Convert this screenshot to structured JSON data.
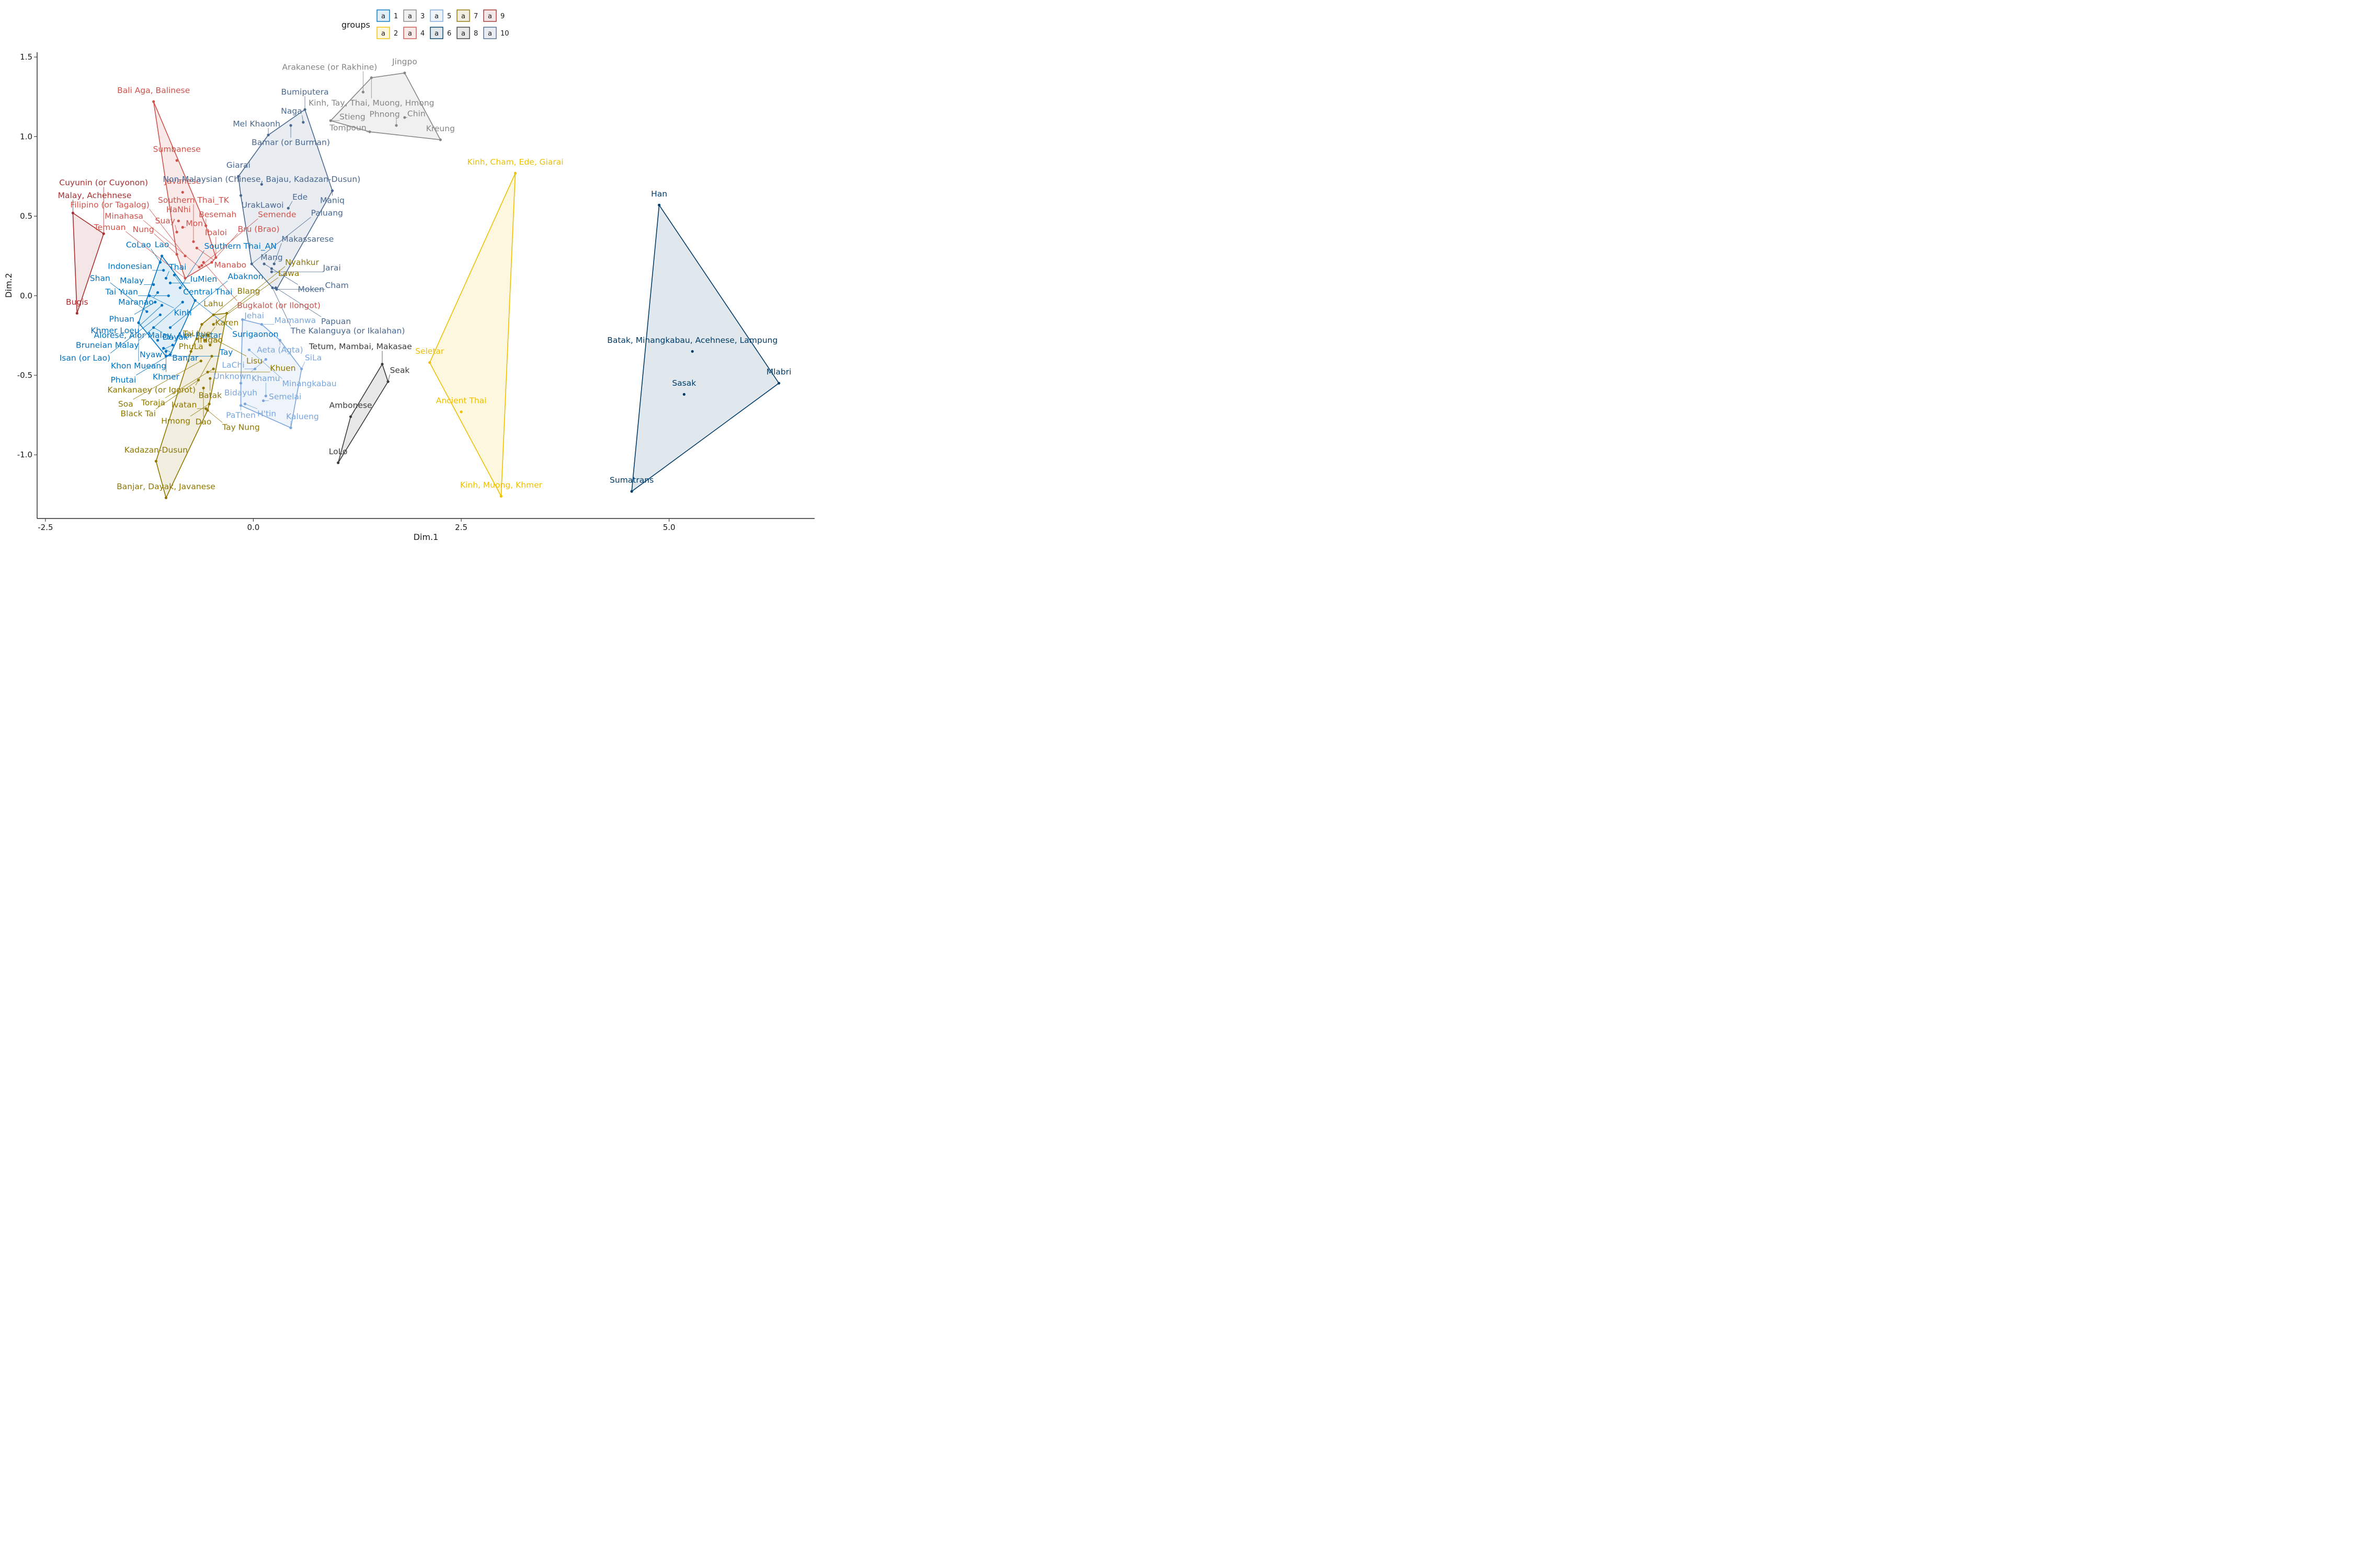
{
  "chart_data": {
    "type": "scatter",
    "xlabel": "Dim.1",
    "ylabel": "Dim.2",
    "xlim": [
      -2.6,
      6.75
    ],
    "ylim": [
      -1.4,
      1.53
    ],
    "xticks": [
      -2.5,
      0.0,
      2.5,
      5.0
    ],
    "xtick_labels": [
      "-2.5",
      "0.0",
      "2.5",
      "5.0"
    ],
    "yticks": [
      -1.0,
      -0.5,
      0.0,
      0.5,
      1.0,
      1.5
    ],
    "ytick_labels": [
      "-1.0",
      "-0.5",
      "0.0",
      "0.5",
      "1.0",
      "1.5"
    ],
    "grid": false,
    "legend": {
      "title": "groups",
      "placement": "top",
      "glyph": "a",
      "entries": [
        "1",
        "2",
        "3",
        "4",
        "5",
        "6",
        "7",
        "8",
        "9",
        "10"
      ]
    },
    "series": [
      {
        "name": "1",
        "color": "#0073C2",
        "fill": "#0073C2",
        "points": [
          {
            "label": "Lao",
            "x": -1.1,
            "y": 0.25
          },
          {
            "label": "CoLao",
            "x": -1.12,
            "y": 0.21
          },
          {
            "label": "Indonesian",
            "x": -1.08,
            "y": 0.16
          },
          {
            "label": "Central Thai",
            "x": -0.95,
            "y": 0.13
          },
          {
            "label": "Thai",
            "x": -1.05,
            "y": 0.11
          },
          {
            "label": "IuMien",
            "x": -1.0,
            "y": 0.08
          },
          {
            "label": "Southern Thai_AN",
            "x": -0.88,
            "y": 0.05
          },
          {
            "label": "Malay",
            "x": -1.2,
            "y": 0.07
          },
          {
            "label": "Maranao",
            "x": -1.15,
            "y": 0.02
          },
          {
            "label": "Tai Yuan",
            "x": -1.02,
            "y": 0.0
          },
          {
            "label": "Kinh",
            "x": -1.25,
            "y": 0.0
          },
          {
            "label": "Surigaonon",
            "x": -0.7,
            "y": -0.03
          },
          {
            "label": "Phuan",
            "x": -1.18,
            "y": -0.04
          },
          {
            "label": "Khmer Loeu",
            "x": -1.1,
            "y": -0.06
          },
          {
            "label": "Bruneian Malay",
            "x": -0.85,
            "y": -0.04
          },
          {
            "label": "Shan",
            "x": -1.28,
            "y": -0.1
          },
          {
            "label": "Isan (or Lao)",
            "x": -1.12,
            "y": -0.12
          },
          {
            "label": "Khon Mueang",
            "x": -1.38,
            "y": -0.17
          },
          {
            "label": "Dayak",
            "x": -1.2,
            "y": -0.2
          },
          {
            "label": "Abaknon",
            "x": -1.0,
            "y": -0.2
          },
          {
            "label": "Alorese, Alor Malay, Alor-Pantar",
            "x": -1.15,
            "y": -0.28
          },
          {
            "label": "Banjar",
            "x": -1.08,
            "y": -0.33
          },
          {
            "label": "Nyaw",
            "x": -0.97,
            "y": -0.31
          },
          {
            "label": "Khmer",
            "x": -1.05,
            "y": -0.35
          },
          {
            "label": "Phutai",
            "x": -1.0,
            "y": -0.37
          },
          {
            "label": "Tay",
            "x": -1.05,
            "y": -0.38
          }
        ]
      },
      {
        "name": "2",
        "color": "#EFC000",
        "fill": "#EFC000",
        "points": [
          {
            "label": "Kinh, Cham, Ede, Giarai",
            "x": 3.15,
            "y": 0.77
          },
          {
            "label": "Seletar",
            "x": 2.12,
            "y": -0.42
          },
          {
            "label": "Ancient Thai",
            "x": 2.5,
            "y": -0.73
          },
          {
            "label": "Kinh, Muong, Khmer",
            "x": 2.98,
            "y": -1.26
          }
        ]
      },
      {
        "name": "3",
        "color": "#868686",
        "fill": "#868686",
        "points": [
          {
            "label": "Jingpo",
            "x": 1.82,
            "y": 1.4
          },
          {
            "label": "Kinh, Tay, Thai, Muong, Hmong",
            "x": 1.42,
            "y": 1.37
          },
          {
            "label": "Arakanese (or Rakhine)",
            "x": 1.32,
            "y": 1.28
          },
          {
            "label": "Chin",
            "x": 1.82,
            "y": 1.12
          },
          {
            "label": "Stieng",
            "x": 0.93,
            "y": 1.1
          },
          {
            "label": "Phnong",
            "x": 1.72,
            "y": 1.07
          },
          {
            "label": "Tompoun",
            "x": 1.4,
            "y": 1.03
          },
          {
            "label": "Kreung",
            "x": 2.25,
            "y": 0.98
          }
        ]
      },
      {
        "name": "4",
        "color": "#CD534C",
        "fill": "#CD534C",
        "points": [
          {
            "label": "Bali Aga, Balinese",
            "x": -1.2,
            "y": 1.22
          },
          {
            "label": "Sumbanese",
            "x": -0.92,
            "y": 0.85
          },
          {
            "label": "Javanese",
            "x": -0.85,
            "y": 0.65
          },
          {
            "label": "HaNhi",
            "x": -0.9,
            "y": 0.47
          },
          {
            "label": "Besemah",
            "x": -0.57,
            "y": 0.44
          },
          {
            "label": "Mon",
            "x": -0.85,
            "y": 0.43
          },
          {
            "label": "Suay",
            "x": -0.92,
            "y": 0.4
          },
          {
            "label": "Southern Thai_TK",
            "x": -0.72,
            "y": 0.34
          },
          {
            "label": "Manabo",
            "x": -0.68,
            "y": 0.3
          },
          {
            "label": "Nung",
            "x": -0.92,
            "y": 0.26
          },
          {
            "label": "Filipino (or Tagalog)",
            "x": -0.82,
            "y": 0.25
          },
          {
            "label": "Ibaloi",
            "x": -0.45,
            "y": 0.24
          },
          {
            "label": "Bugkalot (or Ilongot)",
            "x": -0.6,
            "y": 0.21
          },
          {
            "label": "Bru (Brao)",
            "x": -0.5,
            "y": 0.21
          },
          {
            "label": "Semende",
            "x": -0.62,
            "y": 0.19
          },
          {
            "label": "Minahasa",
            "x": -0.65,
            "y": 0.18
          },
          {
            "label": "Temuan",
            "x": -0.82,
            "y": 0.11
          }
        ]
      },
      {
        "name": "5",
        "color": "#7AA6DC",
        "fill": "#7AA6DC",
        "points": [
          {
            "label": "Jehai",
            "x": -0.13,
            "y": -0.15
          },
          {
            "label": "Mamanwa",
            "x": 0.1,
            "y": -0.18
          },
          {
            "label": "Aeta (Agta)",
            "x": 0.32,
            "y": -0.28
          },
          {
            "label": "Minangkabau",
            "x": -0.05,
            "y": -0.34
          },
          {
            "label": "Unknown",
            "x": 0.15,
            "y": -0.4
          },
          {
            "label": "LaChi",
            "x": 0.02,
            "y": -0.46
          },
          {
            "label": "SiLa",
            "x": 0.58,
            "y": -0.46
          },
          {
            "label": "Bidayuh",
            "x": -0.15,
            "y": -0.55
          },
          {
            "label": "Khamu",
            "x": 0.15,
            "y": -0.63
          },
          {
            "label": "Semelai",
            "x": 0.12,
            "y": -0.66
          },
          {
            "label": "PaThen",
            "x": -0.15,
            "y": -0.69
          },
          {
            "label": "H'tin",
            "x": -0.1,
            "y": -0.68
          },
          {
            "label": "Kalueng",
            "x": 0.45,
            "y": -0.83
          }
        ]
      },
      {
        "name": "6",
        "color": "#003C67",
        "fill": "#003C67",
        "points": [
          {
            "label": "Han",
            "x": 4.88,
            "y": 0.57
          },
          {
            "label": "Batak, Minangkabau, Acehnese, Lampung",
            "x": 5.28,
            "y": -0.35
          },
          {
            "label": "Mlabri",
            "x": 6.32,
            "y": -0.55
          },
          {
            "label": "Sasak",
            "x": 5.18,
            "y": -0.62
          },
          {
            "label": "Sumatrans",
            "x": 4.55,
            "y": -1.23
          }
        ]
      },
      {
        "name": "7",
        "color": "#8F7700",
        "fill": "#8F7700",
        "points": [
          {
            "label": "Lahu",
            "x": -0.48,
            "y": -0.12
          },
          {
            "label": "Nyahkur",
            "x": -0.32,
            "y": -0.11
          },
          {
            "label": "Blang",
            "x": -0.62,
            "y": -0.18
          },
          {
            "label": "Lawa",
            "x": -0.48,
            "y": -0.18
          },
          {
            "label": "Lisu",
            "x": -0.55,
            "y": -0.25
          },
          {
            "label": "Karen",
            "x": -0.58,
            "y": -0.28
          },
          {
            "label": "Tai Lue",
            "x": -0.68,
            "y": -0.27
          },
          {
            "label": "Ifugao",
            "x": -0.52,
            "y": -0.31
          },
          {
            "label": "Kankanaey (or Igorot)",
            "x": -0.5,
            "y": -0.38
          },
          {
            "label": "PhuLa",
            "x": -0.75,
            "y": -0.35
          },
          {
            "label": "Soa",
            "x": -0.63,
            "y": -0.41
          },
          {
            "label": "Toraja",
            "x": -0.48,
            "y": -0.46
          },
          {
            "label": "Khuen",
            "x": -0.55,
            "y": -0.48
          },
          {
            "label": "Batak",
            "x": -0.52,
            "y": -0.52
          },
          {
            "label": "Black Tai",
            "x": -0.66,
            "y": -0.53
          },
          {
            "label": "Dao",
            "x": -0.6,
            "y": -0.58
          },
          {
            "label": "Hmong",
            "x": -0.53,
            "y": -0.68
          },
          {
            "label": "Ivatan",
            "x": -0.57,
            "y": -0.71
          },
          {
            "label": "Tay Nung",
            "x": -0.55,
            "y": -0.72
          },
          {
            "label": "Kadazan-Dusun",
            "x": -1.17,
            "y": -1.04
          },
          {
            "label": "Banjar, Dayak, Javanese",
            "x": -1.05,
            "y": -1.27
          }
        ]
      },
      {
        "name": "8",
        "color": "#3B3B3B",
        "fill": "#3B3B3B",
        "points": [
          {
            "label": "Tetum, Mambai, Makasae",
            "x": 1.55,
            "y": -0.43
          },
          {
            "label": "Seak",
            "x": 1.62,
            "y": -0.54
          },
          {
            "label": "Ambonese",
            "x": 1.17,
            "y": -0.76
          },
          {
            "label": "LoLo",
            "x": 1.02,
            "y": -1.05
          }
        ]
      },
      {
        "name": "9",
        "color": "#A73030",
        "fill": "#A73030",
        "points": [
          {
            "label": "Malay, Achehnese",
            "x": -2.17,
            "y": 0.52
          },
          {
            "label": "Cuyunin (or Cuyonon)",
            "x": -1.8,
            "y": 0.39
          },
          {
            "label": "Bugis",
            "x": -2.12,
            "y": -0.11
          }
        ]
      },
      {
        "name": "10",
        "color": "#4A6990",
        "fill": "#4A6990",
        "points": [
          {
            "label": "Bumiputera",
            "x": 0.62,
            "y": 1.17
          },
          {
            "label": "Naga",
            "x": 0.6,
            "y": 1.09
          },
          {
            "label": "Bamar (or Burman)",
            "x": 0.45,
            "y": 1.07
          },
          {
            "label": "Mel Khaonh",
            "x": 0.18,
            "y": 1.01
          },
          {
            "label": "Giarai",
            "x": -0.18,
            "y": 0.75
          },
          {
            "label": "Non-Malaysian (Chinese, Bajau, Kadazan-Dusun)",
            "x": 0.1,
            "y": 0.7
          },
          {
            "label": "Maniq",
            "x": 0.95,
            "y": 0.66
          },
          {
            "label": "UrakLawoi",
            "x": -0.15,
            "y": 0.63
          },
          {
            "label": "Ede",
            "x": 0.42,
            "y": 0.55
          },
          {
            "label": "Makassarese",
            "x": 0.25,
            "y": 0.2
          },
          {
            "label": "Moken",
            "x": 0.13,
            "y": 0.2
          },
          {
            "label": "Mang",
            "x": 0.22,
            "y": 0.17
          },
          {
            "label": "Jarai",
            "x": 0.22,
            "y": 0.15
          },
          {
            "label": "Paluang",
            "x": -0.02,
            "y": 0.2
          },
          {
            "label": "Papuan",
            "x": 0.27,
            "y": 0.05
          },
          {
            "label": "Cham",
            "x": 0.28,
            "y": 0.04
          },
          {
            "label": "The Kalanguya (or Ikalahan)",
            "x": 0.23,
            "y": 0.05
          }
        ]
      }
    ]
  }
}
